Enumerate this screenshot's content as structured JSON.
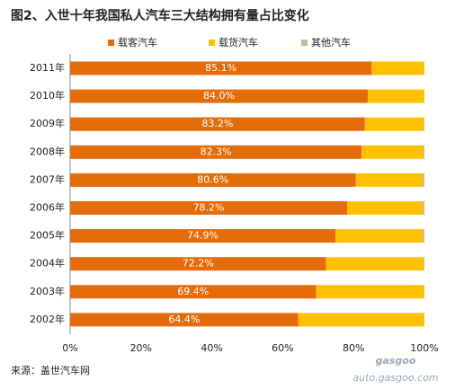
{
  "chart_data": {
    "type": "stacked-bar-horizontal",
    "title": "图2、入世十年我国私人汽车三大结构拥有量占比变化",
    "source": "来源：盖世汽车网",
    "watermark": {
      "logo": "gasgoo",
      "url": "auto.gasgoo.com"
    },
    "categories": [
      "2011年",
      "2010年",
      "2009年",
      "2008年",
      "2007年",
      "2006年",
      "2005年",
      "2004年",
      "2003年",
      "2002年"
    ],
    "series": [
      {
        "name": "载客汽车",
        "color": "#e36c09",
        "values": [
          85.1,
          84.0,
          83.2,
          82.3,
          80.6,
          78.2,
          74.9,
          72.2,
          69.4,
          64.4
        ],
        "value_labels": [
          "85.1%",
          "84.0%",
          "83.2%",
          "82.3%",
          "80.6%",
          "78.2%",
          "74.9%",
          "72.2%",
          "69.4%",
          "64.4%"
        ]
      },
      {
        "name": "载货汽车",
        "color": "#ffc000",
        "values": [
          14.8,
          15.9,
          16.6,
          17.2,
          18.8,
          21.2,
          24.5,
          27.4,
          30.5,
          35.5
        ]
      },
      {
        "name": "其他汽车",
        "color": "#c4bd97",
        "values": [
          0.1,
          0.1,
          0.2,
          0.5,
          0.6,
          0.6,
          0.6,
          0.4,
          0.1,
          0.1
        ]
      }
    ],
    "xlim": [
      0,
      100
    ],
    "xticks": [
      {
        "value": 0,
        "label": "0%"
      },
      {
        "value": 20,
        "label": "20%"
      },
      {
        "value": 40,
        "label": "40%"
      },
      {
        "value": 60,
        "label": "60%"
      },
      {
        "value": 80,
        "label": "80%"
      },
      {
        "value": 100,
        "label": "100%"
      }
    ],
    "legend": "top"
  }
}
